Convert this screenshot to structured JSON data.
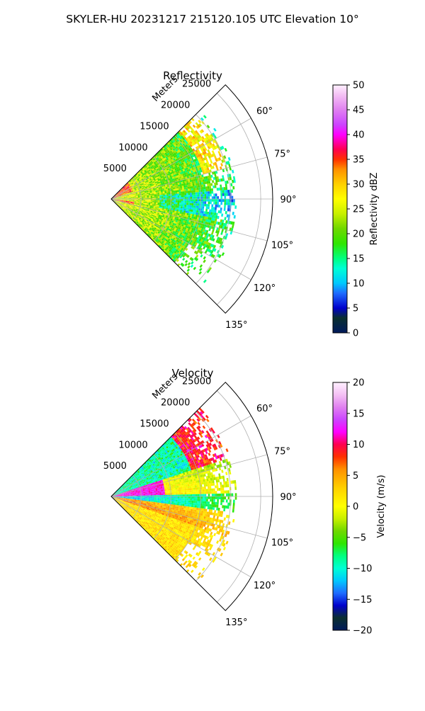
{
  "figure": {
    "title": "SKYLER-HU  20231217  215120.105 UTC Elevation 10°"
  },
  "colors": {
    "background": "#ffffff",
    "grid": "#b0b0b0",
    "axis": "#000000"
  },
  "chart_data": [
    {
      "type": "heatmap",
      "subtype": "polar-sector-ppi",
      "title": "Reflectivity",
      "radial_axis_label": "Meters",
      "radial_ticks": [
        5000,
        10000,
        15000,
        20000,
        25000
      ],
      "radial_tick_labels": [
        "5000",
        "10000",
        "15000",
        "20000",
        "25000"
      ],
      "radial_range": [
        0,
        27000
      ],
      "azimuth_range_deg": [
        45,
        135
      ],
      "azimuth_ticks_deg": [
        60,
        75,
        90,
        105,
        120,
        135
      ],
      "azimuth_tick_labels": [
        "60°",
        "75°",
        "90°",
        "105°",
        "120°",
        "135°"
      ],
      "grid": true,
      "data_extent_m": 21000,
      "colorbar": {
        "label": "Reflectivity dBZ",
        "range": [
          0,
          50
        ],
        "ticks": [
          0,
          5,
          10,
          15,
          20,
          25,
          30,
          35,
          40,
          45,
          50
        ],
        "tick_labels": [
          "0",
          "5",
          "10",
          "15",
          "20",
          "25",
          "30",
          "35",
          "40",
          "45",
          "50"
        ],
        "stops": [
          {
            "v": 0,
            "c": "#001a5c"
          },
          {
            "v": 3,
            "c": "#0a2f2f"
          },
          {
            "v": 5,
            "c": "#0000cc"
          },
          {
            "v": 8,
            "c": "#1e6cff"
          },
          {
            "v": 10,
            "c": "#00c8ff"
          },
          {
            "v": 13,
            "c": "#00ffd5"
          },
          {
            "v": 15,
            "c": "#00ff80"
          },
          {
            "v": 18,
            "c": "#2ee600"
          },
          {
            "v": 21,
            "c": "#6fd800"
          },
          {
            "v": 24,
            "c": "#c8f000"
          },
          {
            "v": 27,
            "c": "#ffff00"
          },
          {
            "v": 30,
            "c": "#ffd000"
          },
          {
            "v": 33,
            "c": "#ff9000"
          },
          {
            "v": 35,
            "c": "#ff3000"
          },
          {
            "v": 37,
            "c": "#ff0050"
          },
          {
            "v": 40,
            "c": "#ff00ff"
          },
          {
            "v": 42,
            "c": "#cc44ff"
          },
          {
            "v": 45,
            "c": "#e080f0"
          },
          {
            "v": 48,
            "c": "#f4c0f4"
          },
          {
            "v": 50,
            "c": "#fff0ff"
          }
        ]
      }
    },
    {
      "type": "heatmap",
      "subtype": "polar-sector-ppi",
      "title": "Velocity",
      "radial_axis_label": "Meters",
      "radial_ticks": [
        5000,
        10000,
        15000,
        20000,
        25000
      ],
      "radial_tick_labels": [
        "5000",
        "10000",
        "15000",
        "20000",
        "25000"
      ],
      "radial_range": [
        0,
        27000
      ],
      "azimuth_range_deg": [
        45,
        135
      ],
      "azimuth_ticks_deg": [
        60,
        75,
        90,
        105,
        120,
        135
      ],
      "azimuth_tick_labels": [
        "60°",
        "75°",
        "90°",
        "105°",
        "120°",
        "135°"
      ],
      "grid": true,
      "data_extent_m": 21000,
      "colorbar": {
        "label": "Velocity (m/s)",
        "range": [
          -20,
          20
        ],
        "ticks": [
          -20,
          -15,
          -10,
          -5,
          0,
          5,
          10,
          15,
          20
        ],
        "tick_labels": [
          "−20",
          "−15",
          "−10",
          "−5",
          "0",
          "5",
          "10",
          "15",
          "20"
        ],
        "stops": [
          {
            "v": -20,
            "c": "#001a5c"
          },
          {
            "v": -18,
            "c": "#0a2f2f"
          },
          {
            "v": -16,
            "c": "#0000cc"
          },
          {
            "v": -14,
            "c": "#1e6cff"
          },
          {
            "v": -12,
            "c": "#00c8ff"
          },
          {
            "v": -10,
            "c": "#00ffd5"
          },
          {
            "v": -8,
            "c": "#00ff80"
          },
          {
            "v": -6,
            "c": "#2ee600"
          },
          {
            "v": -4,
            "c": "#6fd800"
          },
          {
            "v": -2,
            "c": "#c8f000"
          },
          {
            "v": 0,
            "c": "#ffff00"
          },
          {
            "v": 3,
            "c": "#ffd000"
          },
          {
            "v": 6,
            "c": "#ff9000"
          },
          {
            "v": 8,
            "c": "#ff3000"
          },
          {
            "v": 10,
            "c": "#ff0050"
          },
          {
            "v": 12,
            "c": "#ff00ff"
          },
          {
            "v": 14,
            "c": "#cc44ff"
          },
          {
            "v": 16,
            "c": "#e080f0"
          },
          {
            "v": 18,
            "c": "#f4c0f4"
          },
          {
            "v": 20,
            "c": "#fff0ff"
          }
        ]
      }
    }
  ]
}
